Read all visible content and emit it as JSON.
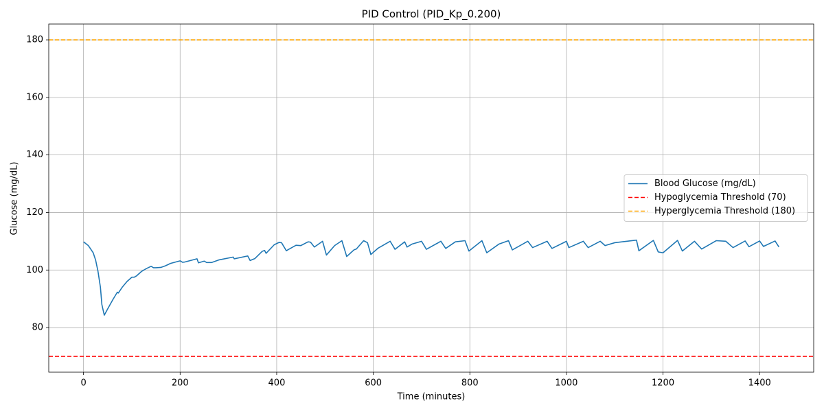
{
  "chart_data": {
    "type": "line",
    "title": "PID Control (PID_Kp_0.200)",
    "x_label": "Time (minutes)",
    "y_label": "Glucose (mg/dL)",
    "xlim": [
      -72,
      1512
    ],
    "ylim": [
      64.5,
      185.5
    ],
    "xticks": [
      0,
      200,
      400,
      600,
      800,
      1000,
      1200,
      1400
    ],
    "yticks": [
      80,
      100,
      120,
      140,
      160,
      180
    ],
    "grid": true,
    "legend": "center right",
    "series": [
      {
        "name": "Blood Glucose (mg/dL)",
        "color": "#1f77b4",
        "style": "solid",
        "x": [
          0,
          10,
          20,
          25,
          30,
          35,
          38,
          43,
          50,
          60,
          70,
          72,
          80,
          90,
          100,
          105,
          110,
          120,
          130,
          140,
          145,
          150,
          160,
          170,
          180,
          200,
          205,
          210,
          235,
          238,
          250,
          255,
          265,
          280,
          310,
          312,
          340,
          345,
          355,
          370,
          375,
          378,
          395,
          405,
          410,
          420,
          425,
          440,
          450,
          465,
          470,
          478,
          495,
          503,
          520,
          535,
          545,
          560,
          565,
          580,
          588,
          595,
          610,
          635,
          645,
          665,
          670,
          680,
          700,
          710,
          740,
          750,
          770,
          790,
          798,
          825,
          835,
          860,
          880,
          888,
          920,
          930,
          960,
          970,
          1000,
          1005,
          1035,
          1045,
          1070,
          1080,
          1100,
          1145,
          1150,
          1180,
          1190,
          1200,
          1230,
          1240,
          1265,
          1280,
          1310,
          1330,
          1345,
          1370,
          1378,
          1400,
          1408,
          1432,
          1440
        ],
        "values": [
          109.8,
          108.5,
          106,
          103.5,
          99.5,
          94,
          88,
          84.3,
          86.5,
          89.5,
          92.3,
          92,
          94,
          96,
          97.5,
          97.5,
          98,
          99.5,
          100.5,
          101.3,
          100.8,
          100.8,
          100.9,
          101.5,
          102.3,
          103.2,
          102.7,
          102.8,
          103.9,
          102.5,
          103.1,
          102.6,
          102.6,
          103.5,
          104.5,
          103.9,
          104.9,
          103.3,
          104,
          106.5,
          106.8,
          105.8,
          108.8,
          109.6,
          109.5,
          106.7,
          107.2,
          108.6,
          108.5,
          109.8,
          109.7,
          108,
          110,
          105.2,
          108.5,
          110.2,
          104.7,
          107,
          107.3,
          110.2,
          109.5,
          105.4,
          107.6,
          110,
          107.2,
          109.8,
          108,
          109,
          110,
          107.2,
          110,
          107.5,
          109.8,
          110.2,
          106.6,
          110.2,
          106,
          109,
          110.2,
          107,
          110,
          107.8,
          110,
          107.5,
          110,
          107.8,
          110,
          107.8,
          110,
          108.5,
          109.5,
          110.4,
          106.7,
          110.3,
          106.3,
          106,
          110.3,
          106.6,
          110,
          107.3,
          110.2,
          110,
          107.8,
          110.1,
          108.1,
          110.1,
          108.2,
          110.1,
          108
        ]
      },
      {
        "name": "Hypoglycemia Threshold (70)",
        "color": "#ff0000",
        "style": "dashed",
        "value": 70
      },
      {
        "name": "Hyperglycemia Threshold (180)",
        "color": "#ffa500",
        "style": "dashed",
        "value": 180
      }
    ]
  }
}
